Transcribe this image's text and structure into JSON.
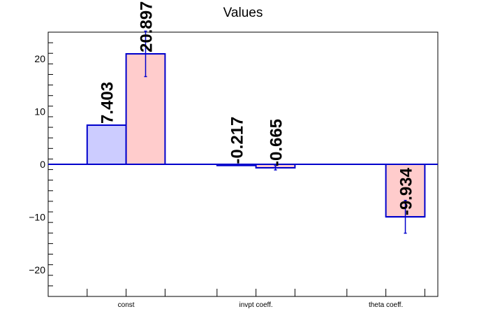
{
  "chart_data": {
    "type": "bar",
    "title": "Values",
    "xlabel": "",
    "ylabel": "",
    "categories": [
      "const",
      "invpt coeff.",
      "theta coeff."
    ],
    "ylim": [
      -25,
      25
    ],
    "yticks": [
      -20,
      -10,
      0,
      10,
      20
    ],
    "grid": false,
    "legend": "none",
    "series": [
      {
        "values": [
          7.403,
          -0.217,
          null
        ],
        "labels": [
          "7.403",
          "-0.217",
          ""
        ],
        "errors": [
          null,
          null,
          null
        ],
        "fill": "#ccccff",
        "stroke": "#0000cc"
      },
      {
        "values": [
          20.897,
          -0.665,
          -9.934
        ],
        "labels": [
          "20.897",
          "-0.665",
          "-9.934"
        ],
        "errors": [
          4.3,
          0.4,
          3.1
        ],
        "fill": "#ffcccc",
        "stroke": "#0000cc"
      }
    ]
  }
}
